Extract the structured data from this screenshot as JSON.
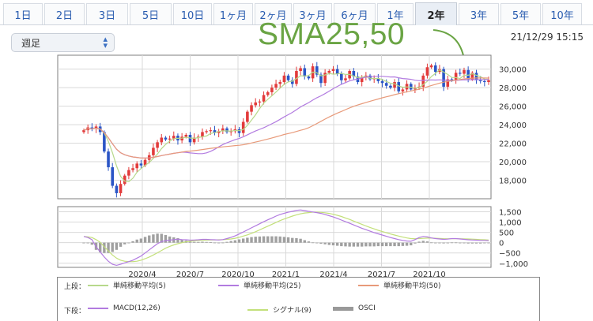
{
  "tabs": [
    {
      "label": "1日"
    },
    {
      "label": "2日"
    },
    {
      "label": "3日"
    },
    {
      "label": "5日"
    },
    {
      "label": "10日"
    },
    {
      "label": "1ヶ月"
    },
    {
      "label": "2ヶ月"
    },
    {
      "label": "3ヶ月"
    },
    {
      "label": "6ヶ月"
    },
    {
      "label": "1年"
    },
    {
      "label": "2年"
    },
    {
      "label": "3年"
    },
    {
      "label": "5年"
    },
    {
      "label": "10年"
    }
  ],
  "active_tab": "2年",
  "period_select": {
    "value": "週足"
  },
  "datetime": "21/12/29 15:15",
  "annotation": "SMA25,50",
  "legend": {
    "upper_label": "上段：",
    "lower_label": "下段：",
    "upper": [
      {
        "label": "単純移動平均(5)",
        "color": "#b7d98b"
      },
      {
        "label": "単純移動平均(25)",
        "color": "#b27be0"
      },
      {
        "label": "単純移動平均(50)",
        "color": "#e89a7a"
      }
    ],
    "lower": [
      {
        "label": "MACD(12,26)",
        "color": "#b27be0"
      },
      {
        "label": "シグナル(9)",
        "color": "#c3e07a"
      },
      {
        "label": "OSCI",
        "color": "#999999"
      }
    ]
  },
  "chart_data": [
    {
      "type": "candlestick",
      "ylim": [
        16000,
        31500
      ],
      "yticks": [
        "30,000",
        "28,000",
        "26,000",
        "24,000",
        "22,000",
        "20,000",
        "18,000"
      ],
      "xticks": [
        "2020/4",
        "2020/7",
        "2020/10",
        "2021/1",
        "2021/4",
        "2021/7",
        "2021/10"
      ],
      "colors": {
        "up": "#e23b3b",
        "down": "#2b56c6",
        "sma5": "#b7d98b",
        "sma25": "#b27be0",
        "sma50": "#e89a7a"
      },
      "close": [
        23400,
        23700,
        23550,
        23800,
        23200,
        21100,
        19400,
        17400,
        16600,
        17600,
        18500,
        19100,
        19300,
        19800,
        19600,
        20200,
        20700,
        21500,
        22100,
        22600,
        22400,
        22500,
        22800,
        22300,
        22700,
        22900,
        22100,
        22600,
        22700,
        23200,
        23300,
        23400,
        23100,
        23300,
        23600,
        23200,
        23300,
        23500,
        23100,
        24300,
        25400,
        26100,
        26400,
        26500,
        27200,
        27500,
        28000,
        28400,
        28600,
        29300,
        28800,
        28400,
        29800,
        30100,
        29200,
        29000,
        30300,
        29400,
        28500,
        29600,
        29800,
        30000,
        29500,
        28800,
        29000,
        29800,
        29200,
        28600,
        29100,
        29300,
        28900,
        29000,
        28700,
        28500,
        28200,
        28000,
        28600,
        27600,
        27800,
        28400,
        27800,
        28000,
        28100,
        29300,
        30200,
        30400,
        29700,
        30000,
        28100,
        28900,
        28800,
        29600,
        29500,
        29900,
        28900,
        29600,
        28800,
        28700,
        28600,
        28800
      ]
    },
    {
      "type": "macd",
      "ylim": [
        -1200,
        1750
      ],
      "yticks": [
        "1,500",
        "1,000",
        "500",
        "0",
        "−500",
        "−1,000"
      ],
      "xticks": [
        "2020/4",
        "2020/7",
        "2020/10",
        "2021/1",
        "2021/4",
        "2021/7",
        "2021/10"
      ],
      "macd": [
        300,
        250,
        150,
        -200,
        -450,
        -700,
        -900,
        -1050,
        -1100,
        -1050,
        -980,
        -920,
        -850,
        -750,
        -650,
        -500,
        -350,
        -200,
        -50,
        50,
        100,
        120,
        150,
        170,
        150,
        140,
        120,
        130,
        140,
        160,
        160,
        150,
        140,
        130,
        150,
        200,
        260,
        330,
        420,
        520,
        620,
        720,
        820,
        920,
        1020,
        1110,
        1200,
        1290,
        1370,
        1430,
        1480,
        1520,
        1570,
        1590,
        1560,
        1520,
        1490,
        1460,
        1420,
        1370,
        1310,
        1250,
        1180,
        1100,
        1020,
        940,
        860,
        780,
        700,
        630,
        560,
        490,
        430,
        370,
        310,
        250,
        200,
        150,
        110,
        80,
        70,
        150,
        250,
        300,
        280,
        230,
        200,
        180,
        160,
        170,
        200,
        200,
        180,
        160,
        140,
        130,
        120,
        110,
        110,
        100
      ],
      "signal": [
        300,
        280,
        250,
        150,
        20,
        -200,
        -400,
        -600,
        -750,
        -850,
        -900,
        -920,
        -920,
        -900,
        -850,
        -780,
        -700,
        -600,
        -490,
        -380,
        -270,
        -180,
        -110,
        -50,
        0,
        40,
        70,
        90,
        105,
        115,
        125,
        130,
        135,
        140,
        145,
        160,
        180,
        215,
        260,
        320,
        380,
        450,
        530,
        620,
        710,
        800,
        890,
        980,
        1070,
        1150,
        1220,
        1290,
        1350,
        1400,
        1440,
        1460,
        1480,
        1480,
        1470,
        1450,
        1420,
        1380,
        1330,
        1270,
        1200,
        1130,
        1050,
        970,
        890,
        810,
        740,
        670,
        600,
        540,
        480,
        420,
        370,
        320,
        270,
        230,
        200,
        190,
        200,
        210,
        220,
        220,
        215,
        205,
        195,
        190,
        190,
        190,
        190,
        185,
        180,
        170,
        160,
        150,
        140,
        130
      ]
    }
  ]
}
